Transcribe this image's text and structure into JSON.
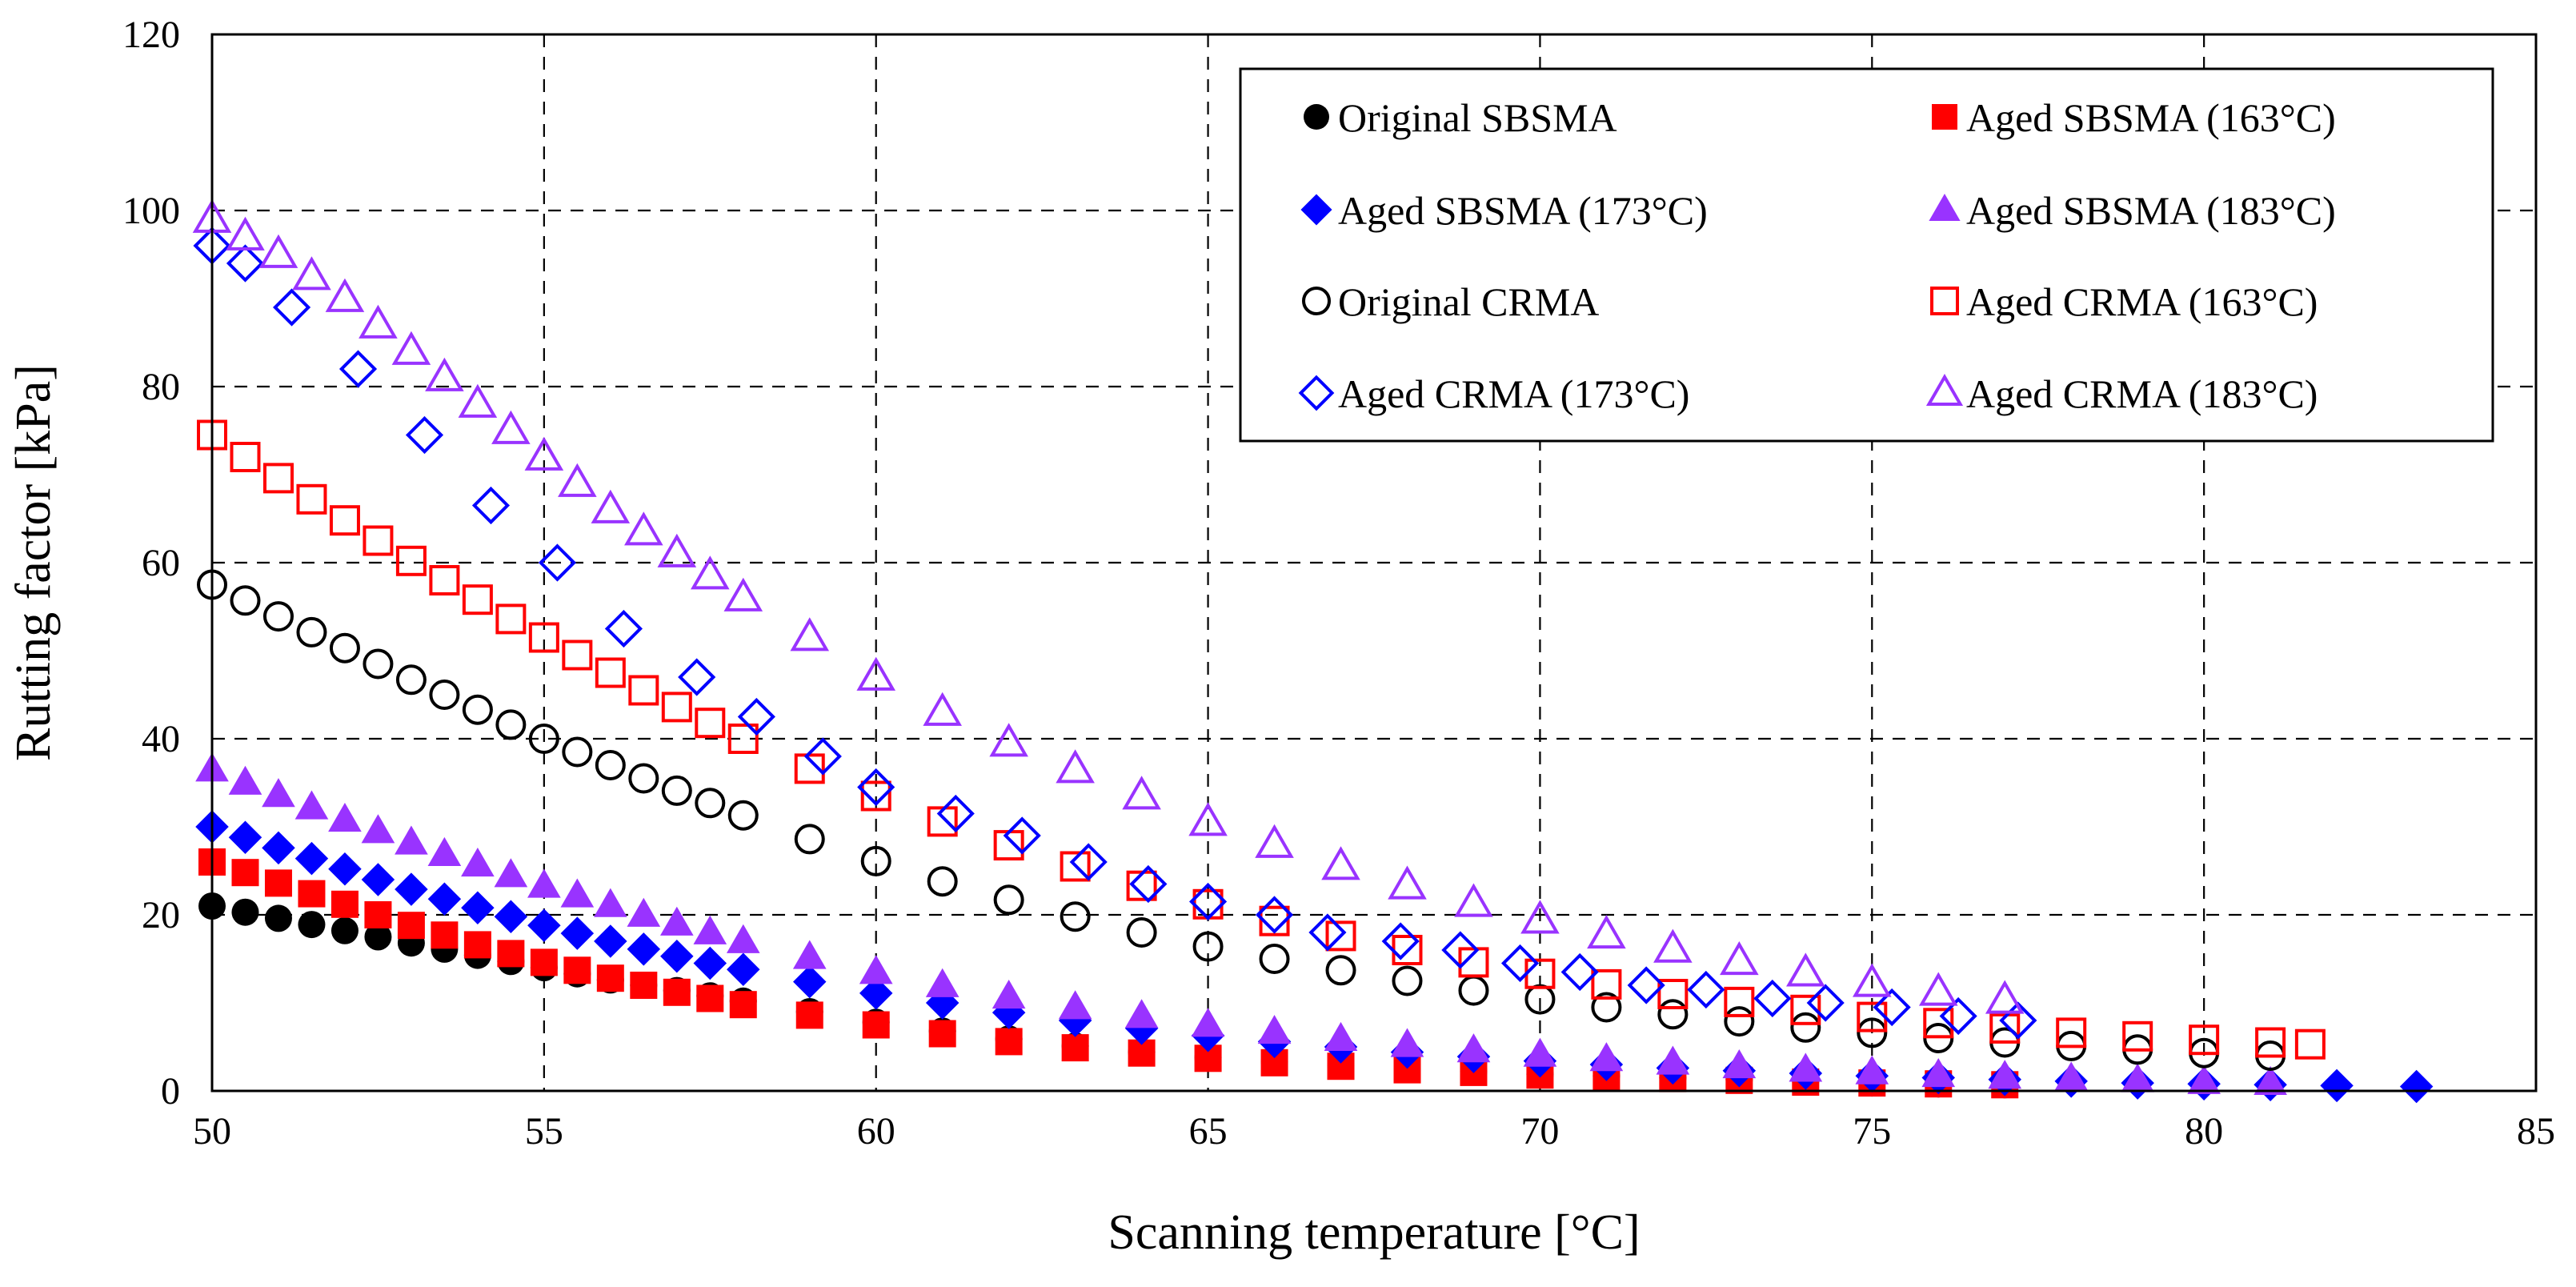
{
  "chart_data": {
    "type": "scatter",
    "xlabel": "Scanning temperature [°C]",
    "ylabel": "Rutting factor [kPa]",
    "xlim": [
      50,
      85
    ],
    "ylim": [
      0,
      120
    ],
    "x_ticks": [
      50,
      55,
      60,
      65,
      70,
      75,
      80,
      85
    ],
    "y_ticks": [
      0,
      20,
      40,
      60,
      80,
      100,
      120
    ],
    "grid": true,
    "legend_position": "top-right",
    "series": [
      {
        "name": "Original SBSMA",
        "marker": "circle",
        "filled": true,
        "color": "#000000",
        "x": [
          50,
          50.5,
          51,
          51.5,
          52,
          52.5,
          53,
          53.5,
          54,
          54.5,
          55,
          55.5,
          56,
          56.5,
          57,
          57.5,
          58,
          59,
          60,
          61,
          62,
          63,
          64,
          65,
          66,
          67,
          68,
          69,
          70,
          71,
          72,
          73,
          74,
          75,
          76,
          77
        ],
        "y": [
          21,
          20.3,
          19.6,
          18.9,
          18.2,
          17.5,
          16.8,
          16.1,
          15.4,
          14.7,
          14,
          13.3,
          12.6,
          12,
          11.4,
          10.8,
          10.2,
          9,
          7.8,
          6.8,
          5.9,
          5.1,
          4.4,
          3.8,
          3.3,
          2.9,
          2.5,
          2.2,
          1.9,
          1.7,
          1.5,
          1.3,
          1.1,
          0.9,
          0.8,
          0.7
        ]
      },
      {
        "name": "Aged SBSMA (163°C)",
        "marker": "square",
        "filled": true,
        "color": "#ff0000",
        "x": [
          50,
          50.5,
          51,
          51.5,
          52,
          52.5,
          53,
          53.5,
          54,
          54.5,
          55,
          55.5,
          56,
          56.5,
          57,
          57.5,
          58,
          59,
          60,
          61,
          62,
          63,
          64,
          65,
          66,
          67,
          68,
          69,
          70,
          71,
          72,
          73,
          74,
          75,
          76,
          77
        ],
        "y": [
          26,
          24.8,
          23.6,
          22.4,
          21.2,
          20,
          18.8,
          17.7,
          16.6,
          15.6,
          14.6,
          13.7,
          12.8,
          12,
          11.2,
          10.5,
          9.8,
          8.6,
          7.5,
          6.5,
          5.6,
          4.9,
          4.3,
          3.7,
          3.2,
          2.8,
          2.4,
          2.1,
          1.8,
          1.6,
          1.4,
          1.2,
          1.0,
          0.9,
          0.8,
          0.7
        ]
      },
      {
        "name": "Aged SBSMA (173°C)",
        "marker": "diamond",
        "filled": true,
        "color": "#0000ff",
        "x": [
          50,
          50.5,
          51,
          51.5,
          52,
          52.5,
          53,
          53.5,
          54,
          54.5,
          55,
          55.5,
          56,
          56.5,
          57,
          57.5,
          58,
          59,
          60,
          61,
          62,
          63,
          64,
          65,
          66,
          67,
          68,
          69,
          70,
          71,
          72,
          73,
          74,
          75,
          76,
          77,
          78,
          79,
          80,
          81,
          82,
          83.2
        ],
        "y": [
          30,
          28.8,
          27.6,
          26.4,
          25.2,
          24,
          22.9,
          21.8,
          20.8,
          19.8,
          18.8,
          17.9,
          17,
          16.1,
          15.3,
          14.5,
          13.8,
          12.4,
          11.1,
          10,
          8.9,
          8,
          7.1,
          6.3,
          5.6,
          5,
          4.4,
          3.9,
          3.4,
          3,
          2.6,
          2.3,
          2,
          1.7,
          1.5,
          1.3,
          1.1,
          0.9,
          0.8,
          0.7,
          0.6,
          0.5
        ]
      },
      {
        "name": "Aged SBSMA (183°C)",
        "marker": "triangle",
        "filled": true,
        "color": "#9933ff",
        "x": [
          50,
          50.5,
          51,
          51.5,
          52,
          52.5,
          53,
          53.5,
          54,
          54.5,
          55,
          55.5,
          56,
          56.5,
          57,
          57.5,
          58,
          59,
          60,
          61,
          62,
          63,
          64,
          65,
          66,
          67,
          68,
          69,
          70,
          71,
          72,
          73,
          74,
          75,
          76,
          77,
          78,
          79,
          80,
          81
        ],
        "y": [
          36.5,
          35,
          33.6,
          32.2,
          30.8,
          29.5,
          28.2,
          26.9,
          25.7,
          24.5,
          23.3,
          22.2,
          21.1,
          20,
          19,
          18,
          17,
          15.2,
          13.5,
          12,
          10.7,
          9.5,
          8.5,
          7.5,
          6.7,
          5.9,
          5.2,
          4.6,
          4.1,
          3.6,
          3.2,
          2.8,
          2.4,
          2.1,
          1.8,
          1.6,
          1.4,
          1.2,
          1.0,
          0.9
        ]
      },
      {
        "name": "Original CRMA",
        "marker": "circle",
        "filled": false,
        "color": "#000000",
        "x": [
          50,
          50.5,
          51,
          51.5,
          52,
          52.5,
          53,
          53.5,
          54,
          54.5,
          55,
          55.5,
          56,
          56.5,
          57,
          57.5,
          58,
          59,
          60,
          61,
          62,
          63,
          64,
          65,
          66,
          67,
          68,
          69,
          70,
          71,
          72,
          73,
          74,
          75,
          76,
          77,
          78,
          79,
          80,
          81
        ],
        "y": [
          57.5,
          55.7,
          53.9,
          52.1,
          50.3,
          48.5,
          46.7,
          45,
          43.3,
          41.6,
          40,
          38.5,
          37,
          35.5,
          34.1,
          32.7,
          31.3,
          28.6,
          26.1,
          23.8,
          21.7,
          19.8,
          18,
          16.4,
          15,
          13.7,
          12.5,
          11.4,
          10.4,
          9.5,
          8.7,
          7.9,
          7.2,
          6.6,
          6,
          5.5,
          5.1,
          4.7,
          4.3,
          4.0
        ]
      },
      {
        "name": "Aged CRMA (163°C)",
        "marker": "square",
        "filled": false,
        "color": "#ff0000",
        "x": [
          50,
          50.5,
          51,
          51.5,
          52,
          52.5,
          53,
          53.5,
          54,
          54.5,
          55,
          55.5,
          56,
          56.5,
          57,
          57.5,
          58,
          59,
          60,
          61,
          62,
          63,
          64,
          65,
          66,
          67,
          68,
          69,
          70,
          71,
          72,
          73,
          74,
          75,
          76,
          77,
          78,
          79,
          80,
          81,
          81.6
        ],
        "y": [
          74.5,
          72,
          69.6,
          67.2,
          64.8,
          62.5,
          60.2,
          58,
          55.8,
          53.6,
          51.5,
          49.5,
          47.5,
          45.5,
          43.6,
          41.8,
          40,
          36.6,
          33.5,
          30.6,
          27.9,
          25.5,
          23.3,
          21.2,
          19.3,
          17.6,
          16,
          14.6,
          13.3,
          12.1,
          11,
          10.1,
          9.2,
          8.4,
          7.7,
          7.1,
          6.6,
          6.2,
          5.8,
          5.5,
          5.3
        ]
      },
      {
        "name": "Aged CRMA (173°C)",
        "marker": "diamond",
        "filled": false,
        "color": "#0000ff",
        "x": [
          50,
          50.5,
          51.2,
          52.2,
          53.2,
          54.2,
          55.2,
          56.2,
          57.3,
          58.2,
          59.2,
          60,
          61.2,
          62.2,
          63.2,
          64.1,
          65,
          66,
          66.8,
          67.9,
          68.8,
          69.7,
          70.6,
          71.6,
          72.5,
          73.5,
          74.3,
          75.3,
          76.3,
          77.2
        ],
        "y": [
          96,
          94,
          89,
          82,
          74.5,
          66.5,
          60,
          52.5,
          47,
          42.5,
          38,
          34.5,
          31.5,
          29,
          26,
          23.5,
          21.5,
          20,
          18,
          17,
          16,
          14.5,
          13.5,
          12,
          11.5,
          10.5,
          10,
          9.5,
          8.5,
          8
        ]
      },
      {
        "name": "Aged CRMA (183°C)",
        "marker": "triangle",
        "filled": false,
        "color": "#9933ff",
        "x": [
          50,
          50.5,
          51,
          51.5,
          52,
          52.5,
          53,
          53.5,
          54,
          54.5,
          55,
          55.5,
          56,
          56.5,
          57,
          57.5,
          58,
          59,
          60,
          61,
          62,
          63,
          64,
          65,
          66,
          67,
          68,
          69,
          70,
          71,
          72,
          73,
          74,
          75,
          76,
          77
        ],
        "y": [
          99,
          97,
          95,
          92.5,
          90,
          87,
          84,
          81,
          78,
          75,
          72,
          69,
          66,
          63.5,
          61,
          58.5,
          56,
          51.5,
          47,
          43,
          39.5,
          36.5,
          33.5,
          30.5,
          28,
          25.5,
          23.3,
          21.3,
          19.4,
          17.7,
          16.1,
          14.7,
          13.4,
          12.2,
          11.2,
          10.3
        ]
      }
    ]
  }
}
